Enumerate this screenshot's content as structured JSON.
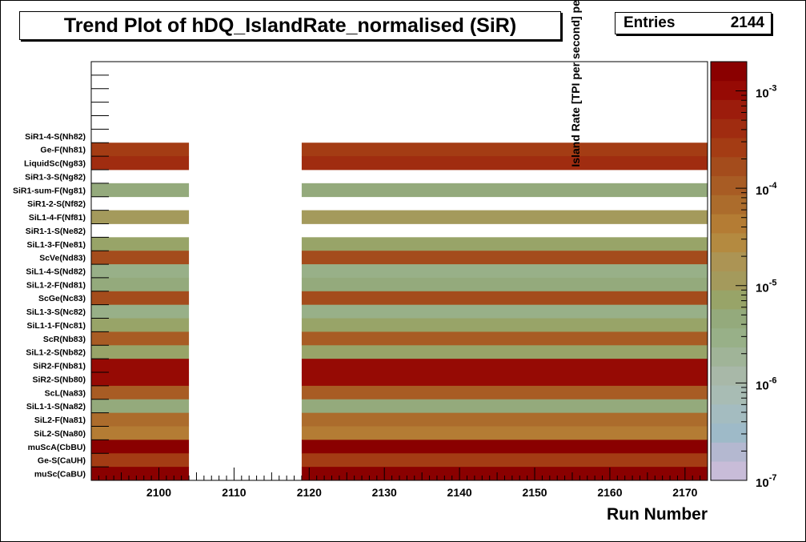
{
  "chart_data": {
    "type": "heatmap",
    "title": "Trend Plot of hDQ_IslandRate_normalised (SiR)",
    "stats": {
      "label": "Entries",
      "value": "2144"
    },
    "xlabel": "Run Number",
    "zlabel": "Island Rate [TPI per second] per TDC muSc Hit",
    "x_ticks": [
      2100,
      2110,
      2120,
      2130,
      2140,
      2150,
      2160,
      2170
    ],
    "xlim": [
      2091,
      2173
    ],
    "z_scale": "log",
    "z_ticks": [
      "10^-7",
      "10^-6",
      "10^-5",
      "10^-4",
      "10^-3"
    ],
    "zlim_exponent": [
      -7,
      -2.7
    ],
    "data_blocks": [
      [
        2091,
        2104
      ],
      [
        2119,
        2173
      ]
    ],
    "empty_top_rows": 5,
    "rows": [
      {
        "label": "SiR1-4-S(Nh82)",
        "exp": null
      },
      {
        "label": "Ge-F(Nh81)",
        "exp": -3.5
      },
      {
        "label": "LiquidSc(Ng83)",
        "exp": -3.45
      },
      {
        "label": "SiR1-3-S(Ng82)",
        "exp": null
      },
      {
        "label": "SiR1-sum-F(Ng81)",
        "exp": -5.4
      },
      {
        "label": "SiR1-2-S(Nf82)",
        "exp": null
      },
      {
        "label": "SiL1-4-F(Nf81)",
        "exp": -5.0
      },
      {
        "label": "SiR1-1-S(Ne82)",
        "exp": null
      },
      {
        "label": "SiL1-3-F(Ne81)",
        "exp": -5.2
      },
      {
        "label": "ScVe(Nd83)",
        "exp": -3.7
      },
      {
        "label": "SiL1-4-S(Nd82)",
        "exp": -5.5
      },
      {
        "label": "SiL1-2-F(Nd81)",
        "exp": -5.3
      },
      {
        "label": "ScGe(Nc83)",
        "exp": -3.8
      },
      {
        "label": "SiL1-3-S(Nc82)",
        "exp": -5.5
      },
      {
        "label": "SiL1-1-F(Nc81)",
        "exp": -5.2
      },
      {
        "label": "ScR(Nb83)",
        "exp": -4.0
      },
      {
        "label": "SiL1-2-S(Nb82)",
        "exp": -5.1
      },
      {
        "label": "SiR2-F(Nb81)",
        "exp": -3.0
      },
      {
        "label": "SiR2-S(Nb80)",
        "exp": -3.0
      },
      {
        "label": "ScL(Na83)",
        "exp": -4.0
      },
      {
        "label": "SiL1-1-S(Na82)",
        "exp": -5.3
      },
      {
        "label": "SiL2-F(Na81)",
        "exp": -4.1
      },
      {
        "label": "SiL2-S(Na80)",
        "exp": -4.3
      },
      {
        "label": "muScA(CbBU)",
        "exp": -2.8
      },
      {
        "label": "Ge-S(CaUH)",
        "exp": -3.6
      },
      {
        "label": "muSc(CaBU)",
        "exp": -2.8
      }
    ],
    "palette": [
      "#c8bcd8",
      "#b4b8d0",
      "#9ebac8",
      "#a4bcc0",
      "#a8bcb4",
      "#a8b8a8",
      "#a0b498",
      "#98b088",
      "#94aa7c",
      "#98a468",
      "#a49a5c",
      "#ac9454",
      "#b48a40",
      "#b47c34",
      "#ac6c2c",
      "#a85c24",
      "#a44c1c",
      "#a43c14",
      "#a02c10",
      "#9c1c0c",
      "#960a04",
      "#8a0000"
    ]
  }
}
